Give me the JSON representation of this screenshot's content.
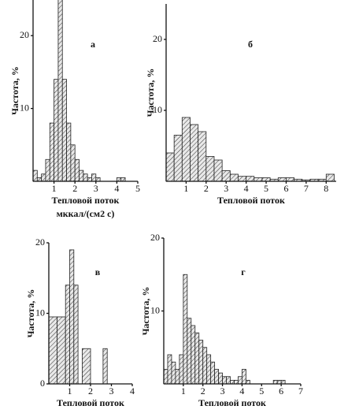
{
  "chart_data": [
    {
      "type": "histogram",
      "title": "а",
      "x_label": "Тепловой поток",
      "x_label_units": "мккал/(см2 с)",
      "y_label": "Частота, %",
      "bins": [
        0,
        0.2,
        0.4,
        0.6,
        0.8,
        1.0,
        1.2,
        1.4,
        1.6,
        1.8,
        2.0,
        2.2,
        2.4,
        2.6,
        2.8,
        3.0,
        3.2,
        3.4,
        3.6,
        3.8,
        4.0,
        4.2,
        4.4
      ],
      "values": [
        1.5,
        0.5,
        1,
        3,
        8,
        14,
        25,
        14,
        8,
        5,
        3,
        1.5,
        1,
        0.5,
        1,
        0.5,
        0,
        0,
        0,
        0,
        0.5,
        0.5
      ],
      "xlim": [
        0,
        5
      ],
      "xticks": [
        1,
        2,
        3,
        4,
        5
      ],
      "ylim": [
        0,
        25
      ],
      "yticks": [
        10,
        20
      ]
    },
    {
      "type": "histogram",
      "title": "б",
      "x_label": "Тепловой поток",
      "y_label": "Частота, %",
      "bins": [
        0,
        0.4,
        0.8,
        1.2,
        1.6,
        2.0,
        2.4,
        2.8,
        3.2,
        3.6,
        4.0,
        4.4,
        4.8,
        5.2,
        5.6,
        6.0,
        6.4,
        6.8,
        7.2,
        7.6,
        8.0,
        8.4
      ],
      "values": [
        4,
        6.5,
        9,
        8,
        7,
        3.5,
        3,
        1.5,
        1,
        0.7,
        0.7,
        0.5,
        0.5,
        0.3,
        0.5,
        0.5,
        0.3,
        0.2,
        0.3,
        0.3,
        1
      ],
      "xlim": [
        0,
        8.5
      ],
      "xticks": [
        1,
        2,
        3,
        4,
        5,
        6,
        7,
        8
      ],
      "ylim": [
        0,
        25
      ],
      "yticks": [
        10,
        20
      ]
    },
    {
      "type": "histogram",
      "title": "в",
      "x_label": "Тепловой поток",
      "y_label": "Частота, %",
      "bins": [
        0,
        0.4,
        0.8,
        1.0,
        1.2,
        1.4,
        1.6,
        2.0,
        2.6,
        2.8
      ],
      "values": [
        9.5,
        9.5,
        14,
        19,
        14,
        0,
        5,
        0,
        5
      ],
      "xlim": [
        0,
        4
      ],
      "xticks": [
        1,
        2,
        3,
        4
      ],
      "ylim": [
        0,
        20
      ],
      "yticks": [
        0,
        10,
        20
      ]
    },
    {
      "type": "histogram",
      "title": "г",
      "x_label": "Тепловой поток",
      "y_label": "Частота, %",
      "bins": [
        0,
        0.2,
        0.4,
        0.6,
        0.8,
        1.0,
        1.2,
        1.4,
        1.6,
        1.8,
        2.0,
        2.2,
        2.4,
        2.6,
        2.8,
        3.0,
        3.2,
        3.4,
        3.6,
        3.8,
        4.0,
        4.2,
        4.4,
        4.6,
        4.8,
        5.0,
        5.2,
        5.4,
        5.6,
        5.8,
        6.0,
        6.2
      ],
      "values": [
        2,
        4,
        3,
        2,
        4,
        15,
        9,
        8,
        7,
        6,
        5,
        4,
        3,
        2,
        1.5,
        1,
        1,
        0.5,
        0.5,
        1,
        2,
        0.5,
        0,
        0,
        0,
        0,
        0,
        0,
        0.5,
        0.5,
        0.5
      ],
      "xlim": [
        0,
        7
      ],
      "xticks": [
        1,
        2,
        3,
        4,
        5,
        6,
        7
      ],
      "ylim": [
        0,
        20
      ],
      "yticks": [
        10,
        20
      ]
    }
  ]
}
